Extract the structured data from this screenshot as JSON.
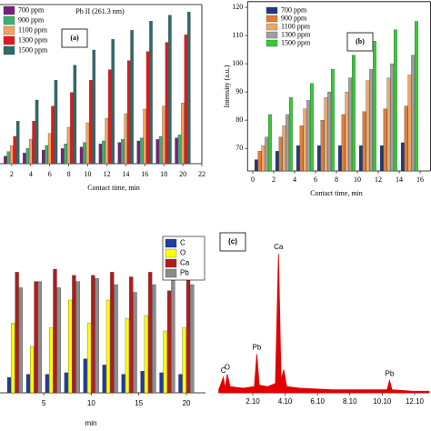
{
  "chart_data": [
    {
      "type": "bar",
      "title": "Pb II (261.3 nm)",
      "label": "(a)",
      "x_label": "Contact time, min",
      "x": [
        2,
        4,
        6,
        8,
        10,
        12,
        14,
        16,
        18,
        20
      ],
      "xlim": [
        0,
        22
      ],
      "xticks": [
        2,
        4,
        6,
        8,
        10,
        12,
        14,
        16,
        18,
        20,
        22
      ],
      "ylim": [
        0,
        105
      ],
      "series": [
        {
          "name": "700 ppm",
          "color": "#7a1f7a",
          "values": [
            5,
            7,
            9,
            10,
            11,
            13,
            14,
            15,
            16,
            17
          ]
        },
        {
          "name": "900 ppm",
          "color": "#3cb371",
          "values": [
            8,
            10,
            12,
            13,
            14,
            15,
            16,
            17,
            18,
            19
          ]
        },
        {
          "name": "1100 ppm",
          "color": "#f4a460",
          "values": [
            12,
            16,
            20,
            24,
            27,
            30,
            33,
            36,
            38,
            40
          ]
        },
        {
          "name": "1300 ppm",
          "color": "#e31a1c",
          "values": [
            18,
            28,
            38,
            47,
            55,
            62,
            68,
            74,
            80,
            85
          ]
        },
        {
          "name": "1500 ppm",
          "color": "#2e6b6b",
          "values": [
            28,
            42,
            55,
            65,
            75,
            82,
            88,
            94,
            98,
            100
          ]
        }
      ]
    },
    {
      "type": "bar",
      "label": "(b)",
      "x_label": "Contact time, min",
      "y_label": "Intensity (a.u.)",
      "x": [
        1,
        3,
        5,
        7,
        9,
        11,
        13,
        15
      ],
      "xlim": [
        -0.5,
        17
      ],
      "xticks": [
        0,
        2,
        4,
        6,
        8,
        10,
        12,
        14,
        16
      ],
      "ylim": [
        62,
        122
      ],
      "yticks": [
        70,
        80,
        90,
        100,
        110,
        120
      ],
      "series": [
        {
          "name": "700 ppm",
          "color": "#1f3a7a",
          "values": [
            66,
            69,
            71,
            71,
            71,
            71,
            71,
            72
          ]
        },
        {
          "name": "900 ppm",
          "color": "#e07b39",
          "values": [
            69,
            74,
            78,
            80,
            82,
            83,
            84,
            85
          ]
        },
        {
          "name": "1100 ppm",
          "color": "#f0a868",
          "values": [
            71,
            78,
            84,
            88,
            90,
            94,
            95,
            96
          ]
        },
        {
          "name": "1300 ppm",
          "color": "#a0a0a0",
          "values": [
            74,
            82,
            87,
            90,
            95,
            98,
            100,
            103
          ]
        },
        {
          "name": "1500 ppm",
          "color": "#33cc33",
          "values": [
            82,
            88,
            93,
            98,
            103,
            108,
            112,
            115
          ]
        }
      ]
    },
    {
      "type": "bar",
      "x_label": "min",
      "x": [
        2,
        4,
        6,
        8,
        10,
        12,
        14,
        16,
        18,
        20
      ],
      "xlim": [
        0,
        22
      ],
      "xticks": [
        5,
        10,
        15,
        20
      ],
      "ylim": [
        0,
        100
      ],
      "series": [
        {
          "name": "C",
          "color": "#1f3d99",
          "values": [
            10,
            12,
            12,
            13,
            22,
            18,
            12,
            14,
            13,
            12
          ]
        },
        {
          "name": "O",
          "color": "#ffff00",
          "values": [
            45,
            30,
            42,
            60,
            45,
            60,
            48,
            50,
            40,
            42
          ]
        },
        {
          "name": "Ca",
          "color": "#b01c1c",
          "values": [
            78,
            72,
            80,
            76,
            76,
            78,
            75,
            78,
            66,
            78
          ]
        },
        {
          "name": "Pb",
          "color": "#8c8c8c",
          "values": [
            68,
            72,
            68,
            72,
            74,
            70,
            65,
            70,
            75,
            70
          ]
        }
      ]
    },
    {
      "type": "area",
      "label": "(c)",
      "color": "#e00000",
      "x": [
        0,
        0.28,
        0.4,
        0.52,
        0.7,
        1.5,
        2.2,
        2.35,
        2.5,
        3.0,
        3.5,
        3.69,
        3.85,
        4.01,
        4.2,
        5,
        7,
        9,
        10.4,
        10.55,
        10.7,
        12,
        13
      ],
      "values": [
        2,
        10,
        3,
        12,
        4,
        3,
        4,
        25,
        5,
        4,
        6,
        90,
        8,
        15,
        4,
        3,
        2,
        2,
        2,
        8,
        2,
        1,
        1
      ],
      "xlim": [
        0,
        13
      ],
      "ylim": [
        0,
        100
      ],
      "xticks": [
        {
          "value": 2.1,
          "label": "2.10"
        },
        {
          "value": 4.1,
          "label": "4.10"
        },
        {
          "value": 6.1,
          "label": "6.10"
        },
        {
          "value": 8.1,
          "label": "8.10"
        },
        {
          "value": 10.1,
          "label": "10.10"
        },
        {
          "value": 12.1,
          "label": "12.10"
        }
      ],
      "annotations": [
        {
          "text": "C",
          "x": 0.28
        },
        {
          "text": "O",
          "x": 0.52
        },
        {
          "text": "Pb",
          "x": 2.35
        },
        {
          "text": "Ca",
          "x": 3.69
        },
        {
          "text": "Pb",
          "x": 10.55
        }
      ]
    }
  ]
}
